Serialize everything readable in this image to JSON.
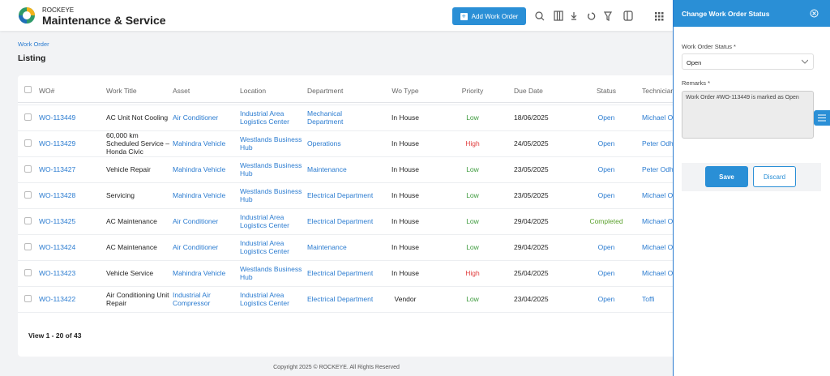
{
  "header": {
    "brand": "ROCKEYE",
    "title": "Maintenance & Service",
    "add_button": "Add Work Order"
  },
  "breadcrumb": "Work Order",
  "page_title": "Listing",
  "table": {
    "columns": [
      "WO#",
      "Work Title",
      "Asset",
      "Location",
      "Department",
      "Wo Type",
      "Priority",
      "Due Date",
      "Status",
      "Technician"
    ],
    "rows": [
      [
        "WO-113449",
        "AC Unit Not Cooling",
        "Air Conditioner",
        "Industrial Area Logistics Center",
        "Mechanical Department",
        "In House",
        "Low",
        "18/06/2025",
        "Open",
        "Michael O"
      ],
      [
        "WO-113429",
        "60,000 km Scheduled Service – Honda Civic",
        "Mahindra Vehicle",
        "Westlands Business Hub",
        "Operations",
        "In House",
        "High",
        "24/05/2025",
        "Open",
        "Peter Odh"
      ],
      [
        "WO-113427",
        "Vehicle Repair",
        "Mahindra Vehicle",
        "Westlands Business Hub",
        "Maintenance",
        "In House",
        "Low",
        "23/05/2025",
        "Open",
        "Peter Odh"
      ],
      [
        "WO-113428",
        "Servicing",
        "Mahindra Vehicle",
        "Westlands Business Hub",
        "Electrical Department",
        "In House",
        "Low",
        "23/05/2025",
        "Open",
        "Michael O"
      ],
      [
        "WO-113425",
        "AC Maintenance",
        "Air Conditioner",
        "Industrial Area Logistics Center",
        "Electrical Department",
        "In House",
        "Low",
        "29/04/2025",
        "Completed",
        "Michael O"
      ],
      [
        "WO-113424",
        "AC Maintenance",
        "Air Conditioner",
        "Industrial Area Logistics Center",
        "Maintenance",
        "In House",
        "Low",
        "29/04/2025",
        "Open",
        "Michael O"
      ],
      [
        "WO-113423",
        "Vehicle Service",
        "Mahindra Vehicle",
        "Westlands Business Hub",
        "Electrical Department",
        "In House",
        "High",
        "25/04/2025",
        "Open",
        "Michael O"
      ],
      [
        "WO-113422",
        "Air Conditioning Unit Repair",
        "Industrial Air Compressor",
        "Industrial Area Logistics Center",
        "Electrical Department",
        "Vendor",
        "Low",
        "23/04/2025",
        "Open",
        "Toffi"
      ]
    ],
    "colors": {
      "Low": "#3c9a3c",
      "High": "#e03b3b",
      "Completed": "#5aa02c",
      "Open": "#2a7bd0"
    }
  },
  "pagination": "View 1 - 20 of 43",
  "copyright": "Copyright 2025 © ROCKEYE. All Rights Reserved",
  "panel": {
    "title": "Change Work Order Status",
    "status_label": "Work Order Status *",
    "status_value": "Open",
    "remarks_label": "Remarks *",
    "remarks_value": "Work Order #WO-113449 is marked as Open",
    "save": "Save",
    "discard": "Discard"
  }
}
